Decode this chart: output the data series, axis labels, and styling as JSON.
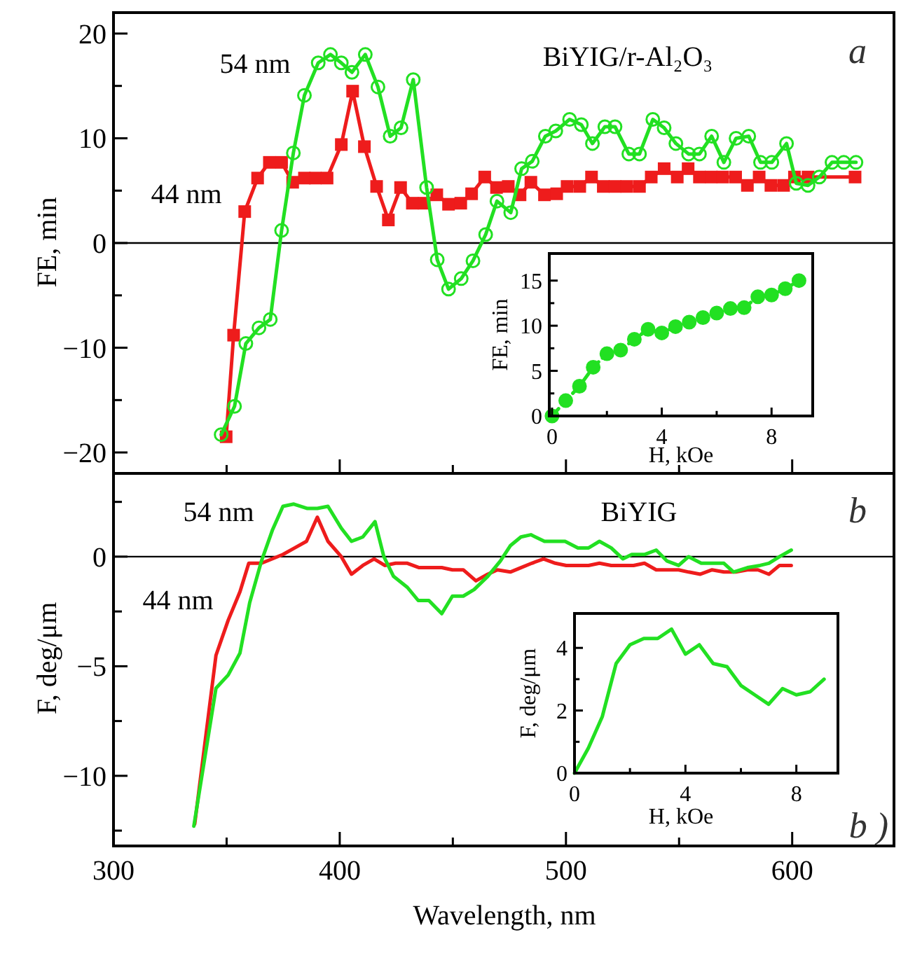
{
  "chart_data": [
    {
      "type": "line",
      "title": "BiYIG/r-Al₂O₃",
      "ylabel": "FE, min",
      "annotations": [
        "a"
      ],
      "xlim": [
        300,
        645
      ],
      "ylim": [
        -22,
        22
      ],
      "xticks": [
        300,
        {
          "value": 350,
          "label": null
        },
        400,
        {
          "value": 450,
          "label": null
        },
        500,
        {
          "value": 550,
          "label": null
        },
        600
      ],
      "yticks": [
        {
          "value": -20,
          "label": "−20"
        },
        {
          "value": -15,
          "label": null
        },
        {
          "value": -10,
          "label": "−10"
        },
        {
          "value": -5,
          "label": null
        },
        0,
        {
          "value": 5,
          "label": null
        },
        10,
        {
          "value": 15,
          "label": null
        },
        20
      ],
      "tick_labels": "y",
      "ref_lines": [
        {
          "axis": "y",
          "value": 0,
          "label": null,
          "color": "#000000"
        }
      ],
      "series": [
        {
          "name": "54 nm",
          "color": "#22e022",
          "marker": "circle",
          "x": [
            347.6,
            353.5,
            358.5,
            364.3,
            369.3,
            374.3,
            379.5,
            384.4,
            390.5,
            395.9,
            400.7,
            405.4,
            411.3,
            416.9,
            422.3,
            427.1,
            432.5,
            438.4,
            443.1,
            448.1,
            453.7,
            458.9,
            464.5,
            469.5,
            475.6,
            480.4,
            485.1,
            490.9,
            495.5,
            501.6,
            506.8,
            511.7,
            517.2,
            521.7,
            527.8,
            532.5,
            538.4,
            543.4,
            548.6,
            554.2,
            559.0,
            564.4,
            569.8,
            575.2,
            580.8,
            586.0,
            591.0,
            597.5,
            601.8,
            607.0,
            612.0,
            617.6,
            622.8,
            628.2
          ],
          "values": [
            -18.3,
            -15.6,
            -9.6,
            -8.1,
            -7.3,
            1.2,
            8.6,
            14.1,
            17.2,
            18.0,
            17.2,
            16.3,
            18.0,
            14.9,
            10.2,
            11.0,
            15.6,
            5.3,
            -1.6,
            -4.4,
            -3.4,
            -1.7,
            0.8,
            4.0,
            2.9,
            7.1,
            7.8,
            10.2,
            10.7,
            11.8,
            11.3,
            9.5,
            11.1,
            11.1,
            8.5,
            8.5,
            11.8,
            11.0,
            9.5,
            8.5,
            8.5,
            10.2,
            7.7,
            10.0,
            10.2,
            7.7,
            7.7,
            9.5,
            5.7,
            5.5,
            6.3,
            7.7,
            7.7,
            7.7
          ]
        },
        {
          "name": "44 nm",
          "color": "#ee1c1c",
          "marker": "square",
          "x": [
            349.8,
            353.1,
            358.0,
            363.7,
            368.9,
            374.3,
            379.2,
            384.4,
            389.2,
            394.4,
            400.7,
            405.7,
            410.9,
            416.3,
            421.5,
            426.9,
            432.1,
            437.3,
            442.9,
            448.1,
            453.5,
            458.3,
            464.1,
            469.3,
            474.5,
            479.7,
            484.5,
            490.5,
            495.9,
            500.5,
            506.1,
            511.3,
            516.5,
            521.7,
            526.9,
            532.5,
            537.7,
            543.4,
            549.2,
            554.0,
            559.0,
            564.2,
            569.3,
            575.0,
            580.2,
            585.4,
            590.6,
            596.2,
            601.0,
            607.0,
            627.8
          ],
          "values": [
            -18.5,
            -8.8,
            3.0,
            6.2,
            7.7,
            7.7,
            5.8,
            6.2,
            6.2,
            6.2,
            9.4,
            14.5,
            9.2,
            5.4,
            2.2,
            5.3,
            3.8,
            3.8,
            4.6,
            3.7,
            3.8,
            4.7,
            6.3,
            5.3,
            5.4,
            4.6,
            5.8,
            4.6,
            4.7,
            5.4,
            5.4,
            6.3,
            5.4,
            5.4,
            5.4,
            5.4,
            6.3,
            7.1,
            6.3,
            7.1,
            6.3,
            6.3,
            6.3,
            6.3,
            5.5,
            6.3,
            5.5,
            5.5,
            6.3,
            6.3,
            6.3
          ]
        }
      ]
    },
    {
      "type": "line",
      "xlabel": "H, kOe",
      "ylabel": "FE, min",
      "xlim": [
        -0.1,
        9.5
      ],
      "ylim": [
        0,
        18
      ],
      "xticks": [
        0,
        {
          "value": 2,
          "label": null
        },
        4,
        {
          "value": 6,
          "label": null
        },
        8
      ],
      "yticks": [
        0,
        {
          "value": 2.5,
          "label": null
        },
        5,
        {
          "value": 7.5,
          "label": null
        },
        10,
        {
          "value": 12.5,
          "label": null
        },
        15
      ],
      "marker": "circle",
      "line_style": "dashed",
      "series": [
        {
          "color": "#22e022",
          "x": [
            0,
            0.5,
            1.0,
            1.5,
            2.0,
            2.5,
            3.0,
            3.5,
            4.0,
            4.5,
            5.0,
            5.5,
            6.0,
            6.5,
            7.0,
            7.5,
            8.0,
            8.5,
            9.0
          ],
          "values": [
            0,
            1.7,
            3.3,
            5.4,
            6.9,
            7.3,
            8.5,
            9.6,
            9.2,
            9.9,
            10.4,
            10.9,
            11.4,
            11.9,
            12.0,
            13.2,
            13.4,
            14.1,
            15.0
          ]
        }
      ]
    },
    {
      "type": "line",
      "title": "BiYIG",
      "xlabel": "Wavelength, nm",
      "ylabel": "F, deg/μm",
      "annotations": [
        "b",
        "b )"
      ],
      "xlim": [
        300,
        645
      ],
      "ylim": [
        -13.2,
        3.8
      ],
      "xticks": [
        300,
        {
          "value": 350,
          "label": null
        },
        400,
        {
          "value": 450,
          "label": null
        },
        500,
        {
          "value": 550,
          "label": null
        },
        600
      ],
      "yticks": [
        {
          "value": -12.5,
          "label": null
        },
        {
          "value": -10,
          "label": "−10"
        },
        {
          "value": -7.5,
          "label": null
        },
        {
          "value": -5,
          "label": "−5"
        },
        {
          "value": -2.5,
          "label": null
        },
        0,
        {
          "value": 2.5,
          "label": null
        }
      ],
      "ref_lines": [
        {
          "axis": "y",
          "value": 0,
          "label": null,
          "color": "#000000"
        }
      ],
      "series": [
        {
          "name": "54 nm",
          "color": "#22e022",
          "x": [
            335.5,
            345.3,
            350.7,
            355.9,
            360.2,
            365.4,
            370.2,
            374.9,
            379.7,
            385.7,
            390.1,
            394.8,
            400.7,
            405.2,
            410.2,
            415.6,
            419.5,
            423.8,
            429.9,
            434.7,
            439.4,
            445.1,
            449.8,
            454.6,
            459.4,
            465.4,
            471.0,
            475.4,
            480.1,
            484.5,
            490.5,
            495.7,
            499.6,
            505.3,
            510.0,
            514.8,
            520.0,
            525.2,
            529.1,
            534.7,
            539.9,
            544.7,
            549.8,
            554.2,
            559.8,
            564.6,
            569.8,
            574.1,
            580.2,
            585.8,
            589.7,
            594.4,
            599.6
          ],
          "values": [
            -12.3,
            -6.0,
            -5.4,
            -4.4,
            -2.1,
            -0.2,
            1.2,
            2.3,
            2.4,
            2.2,
            2.2,
            2.3,
            1.3,
            0.7,
            0.9,
            1.6,
            0.0,
            -0.9,
            -1.4,
            -2.0,
            -2.0,
            -2.6,
            -1.8,
            -1.8,
            -1.5,
            -0.9,
            -0.2,
            0.5,
            0.9,
            1.0,
            0.7,
            0.7,
            0.7,
            0.4,
            0.4,
            0.7,
            0.4,
            -0.1,
            0.1,
            0.1,
            0.3,
            -0.2,
            -0.4,
            0.0,
            -0.3,
            -0.3,
            -0.3,
            -0.7,
            -0.5,
            -0.4,
            -0.3,
            0.0,
            0.3
          ]
        },
        {
          "name": "44 nm",
          "color": "#ee1c1c",
          "x": [
            335.9,
            345.3,
            350.7,
            355.9,
            359.8,
            365.4,
            370.2,
            374.9,
            380.1,
            385.3,
            390.1,
            394.8,
            400.7,
            405.2,
            410.2,
            415.2,
            419.9,
            424.7,
            429.9,
            435.1,
            439.9,
            445.1,
            449.8,
            454.6,
            460.2,
            465.4,
            469.7,
            475.4,
            480.1,
            484.9,
            490.1,
            495.3,
            500.1,
            505.3,
            510.0,
            514.8,
            520.0,
            525.2,
            529.9,
            534.7,
            539.9,
            544.7,
            549.8,
            554.2,
            559.4,
            564.6,
            569.8,
            575.0,
            580.2,
            584.9,
            589.7,
            594.4,
            599.6
          ],
          "values": [
            -12.2,
            -4.5,
            -2.9,
            -1.6,
            -0.3,
            -0.3,
            -0.1,
            0.1,
            0.4,
            0.7,
            1.8,
            0.7,
            0.0,
            -0.8,
            -0.4,
            -0.1,
            -0.4,
            -0.3,
            -0.3,
            -0.5,
            -0.5,
            -0.5,
            -0.6,
            -0.6,
            -1.1,
            -0.8,
            -0.6,
            -0.7,
            -0.5,
            -0.3,
            -0.1,
            -0.3,
            -0.4,
            -0.4,
            -0.4,
            -0.3,
            -0.4,
            -0.4,
            -0.4,
            -0.3,
            -0.6,
            -0.6,
            -0.6,
            -0.7,
            -0.8,
            -0.6,
            -0.7,
            -0.7,
            -0.6,
            -0.6,
            -0.8,
            -0.4,
            -0.4
          ]
        }
      ]
    },
    {
      "type": "line",
      "xlabel": "H, kOe",
      "ylabel": "F, deg/μm",
      "xlim": [
        0,
        9.5
      ],
      "ylim": [
        0,
        5.1
      ],
      "xticks": [
        0,
        {
          "value": 2,
          "label": null
        },
        4,
        {
          "value": 6,
          "label": null
        },
        8
      ],
      "yticks": [
        0,
        {
          "value": 1,
          "label": null
        },
        2,
        {
          "value": 3,
          "label": null
        },
        4
      ],
      "series": [
        {
          "color": "#22e022",
          "x": [
            0,
            0.5,
            1.0,
            1.5,
            2.0,
            2.5,
            3.0,
            3.5,
            4.0,
            4.5,
            5.0,
            5.5,
            6.0,
            6.5,
            7.0,
            7.5,
            8.0,
            8.5,
            9.0
          ],
          "values": [
            0,
            0.8,
            1.8,
            3.5,
            4.1,
            4.3,
            4.3,
            4.6,
            3.8,
            4.1,
            3.5,
            3.4,
            2.8,
            2.5,
            2.2,
            2.7,
            2.5,
            2.6,
            3.0
          ]
        }
      ]
    }
  ]
}
